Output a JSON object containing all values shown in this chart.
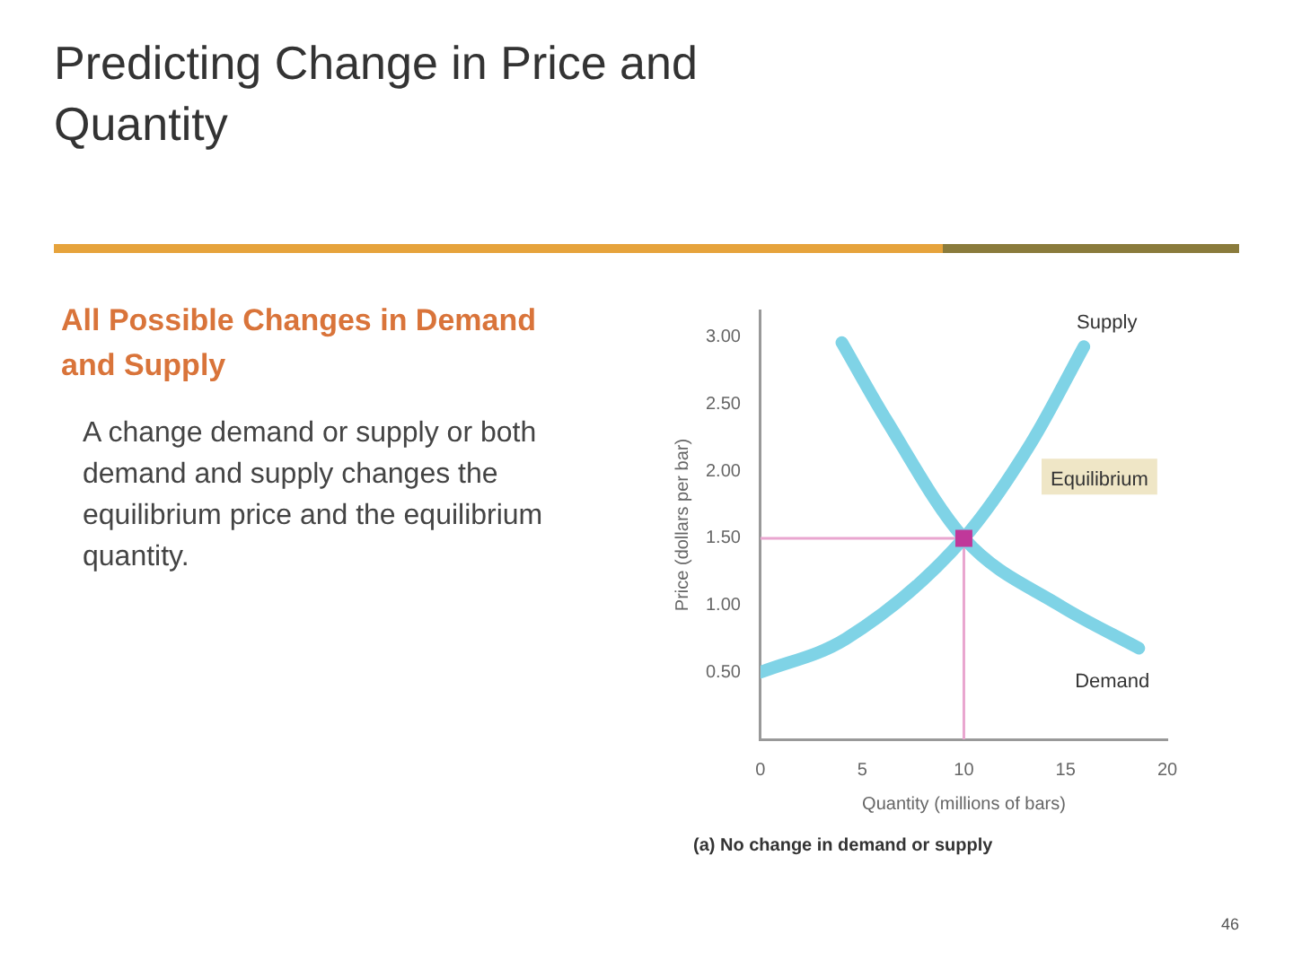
{
  "chart_data": {
    "type": "line",
    "title": "Predicting Change in Price and Quantity",
    "subtitle": "All Possible Changes in Demand and Supply",
    "xlabel": "Quantity (millions of bars)",
    "ylabel": "Price (dollars per bar)",
    "xlim": [
      0,
      20
    ],
    "xticks": [
      0,
      5,
      10,
      15,
      20
    ],
    "ylim": [
      0,
      3.2
    ],
    "yticks": [
      {
        "value": 0.5,
        "label": "0.50"
      },
      {
        "value": 1,
        "label": "1.00"
      },
      {
        "value": 1.5,
        "label": "1.50"
      },
      {
        "value": 2,
        "label": "2.00"
      },
      {
        "value": 2.5,
        "label": "2.50"
      },
      {
        "value": 3,
        "label": "3.00"
      }
    ],
    "grid": false,
    "legend": false,
    "line_style": "solid",
    "marker": "none",
    "series": [
      {
        "name": "Supply",
        "color": "#7fd3e6",
        "x": [
          0,
          4.2,
          10,
          13.3,
          15.9
        ],
        "values": [
          0.5,
          0.75,
          1.5,
          2.21,
          2.93
        ]
      },
      {
        "name": "Demand",
        "color": "#7fd3e6",
        "x": [
          4,
          6.2,
          10,
          14.7,
          18.6
        ],
        "values": [
          2.96,
          2.38,
          1.5,
          1.0,
          0.68
        ]
      },
      {
        "type": "scatter",
        "color": "#c0389a",
        "marker": "square",
        "x": [
          10
        ],
        "values": [
          1.5
        ]
      }
    ],
    "ref_lines": [
      {
        "axis": "x",
        "value": 10,
        "color": "#e9a6cf"
      },
      {
        "axis": "y",
        "value": 1.5,
        "color": "#e9a6cf"
      }
    ],
    "annotations": [
      "A change demand or supply or both demand and supply changes the equilibrium price and the equilibrium quantity.",
      "(a) No change in demand or supply",
      "46",
      "Equilibrium"
    ]
  }
}
